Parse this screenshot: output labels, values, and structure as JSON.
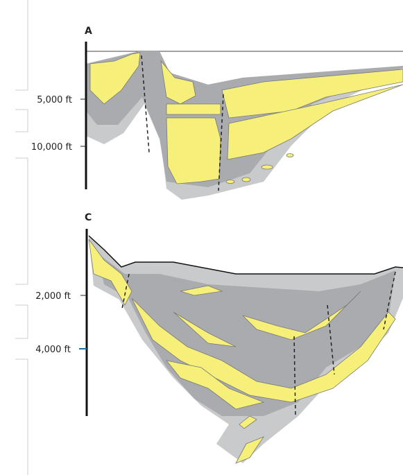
{
  "sections": [
    {
      "label": "A",
      "depth_labels": [
        "5,000 ft",
        "10,000 ft"
      ]
    },
    {
      "label": "C",
      "depth_labels": [
        "2,000 ft",
        "4,000 ft"
      ]
    }
  ]
}
